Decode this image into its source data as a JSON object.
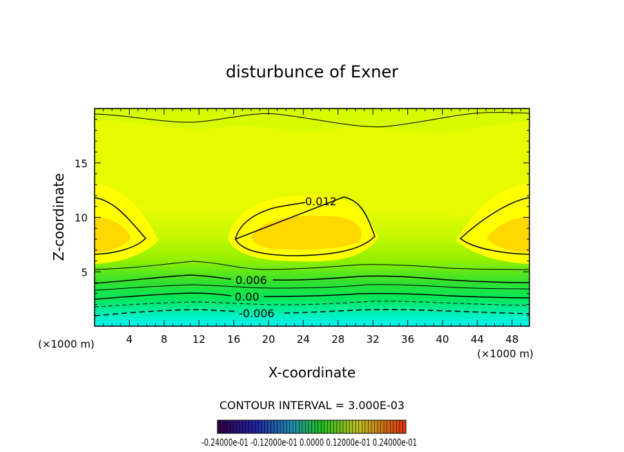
{
  "chart_data": {
    "type": "contour",
    "title": "disturbunce of Exner",
    "xlabel": "X-coordinate",
    "ylabel": "Z-coordinate",
    "x_unit_label": "(×1000 m)",
    "y_unit_label": "(×1000 m)",
    "xlim": [
      0,
      50
    ],
    "ylim": [
      0,
      20
    ],
    "x_ticks": [
      4,
      8,
      12,
      16,
      20,
      24,
      28,
      32,
      36,
      40,
      44,
      48
    ],
    "y_ticks": [
      5,
      10,
      15
    ],
    "contour_interval_label": "CONTOUR INTERVAL = 3.000E-03",
    "contour_labels": [
      {
        "text": "0.012",
        "x": 25,
        "z": 11.5
      },
      {
        "text": "0.006",
        "x": 18.5,
        "z": 4.2
      },
      {
        "text": "0.00",
        "x": 18,
        "z": 2.8
      },
      {
        "text": "-0.006",
        "x": 19,
        "z": 1.3
      }
    ],
    "colorbar": {
      "tick_labels": [
        "-0.24000e-01",
        "-0.12000e-01",
        "0.0000",
        "0.12000e-01",
        "0.24000e-01"
      ],
      "tick_labels_rendered": "-0.24000e-01 -0.12000e-01 0.0000 0.12000e-01 0.24000e-01"
    },
    "colors": {
      "max_band": "#ffd800",
      "high": "#ffff00",
      "mid": "#d8ff00",
      "low": "#00ff40",
      "min_band": "#00f0f0"
    }
  }
}
